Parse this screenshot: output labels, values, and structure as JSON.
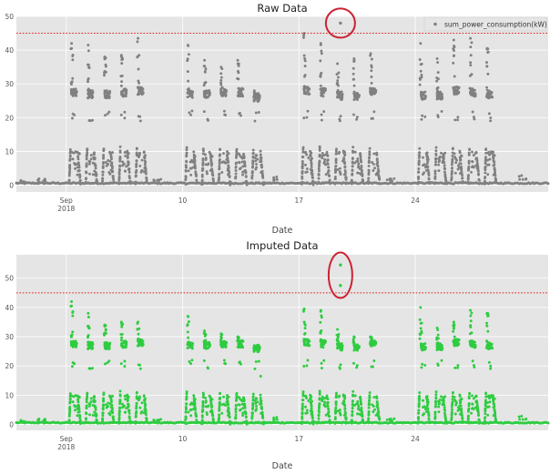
{
  "chart_data": [
    {
      "type": "scatter",
      "title": "Raw Data",
      "xlabel": "Date",
      "ylabel": "",
      "xlim": [
        "2018-08-31",
        "2018-10-02"
      ],
      "ylim": [
        -2,
        50
      ],
      "yticks": [
        0,
        10,
        20,
        30,
        40,
        50
      ],
      "xticks": [
        {
          "date": "2018-09-03",
          "label": "Sep",
          "sublabel": "2018"
        },
        {
          "date": "2018-09-10",
          "label": "10",
          "sublabel": ""
        },
        {
          "date": "2018-09-17",
          "label": "17",
          "sublabel": ""
        },
        {
          "date": "2018-09-24",
          "label": "24",
          "sublabel": ""
        }
      ],
      "grid": true,
      "legend": {
        "position": "top-right",
        "entries": [
          "sum_power_consumption(kW)"
        ]
      },
      "threshold": 45,
      "marker_color": "#808080",
      "threshold_color": "#dd2222",
      "highlight_color": "#cc2233",
      "highlight": {
        "date": "2018-09-19T12:00",
        "y": 48
      },
      "outliers": [
        {
          "date": "2018-09-19T12:00",
          "y": 48
        }
      ],
      "lows": [
        {
          "date": "2018-08-31T12:00",
          "y": 1.5
        },
        {
          "date": "2018-09-01T12:00",
          "y": 2.0
        },
        {
          "date": "2018-09-08T12:00",
          "y": 2.0
        },
        {
          "date": "2018-09-15T12:00",
          "y": 2.5
        },
        {
          "date": "2018-09-22T12:00",
          "y": 2.0
        },
        {
          "date": "2018-09-30T12:00",
          "y": 3.0
        }
      ],
      "days": [
        {
          "date": "2018-09-03",
          "peak": 42,
          "plateau": 27.5
        },
        {
          "date": "2018-09-04",
          "peak": 41.5,
          "plateau": 27
        },
        {
          "date": "2018-09-05",
          "peak": 38,
          "plateau": 27
        },
        {
          "date": "2018-09-06",
          "peak": 38.5,
          "plateau": 27.5
        },
        {
          "date": "2018-09-07",
          "peak": 43.5,
          "plateau": 28
        },
        {
          "date": "2018-09-10",
          "peak": 41.5,
          "plateau": 27
        },
        {
          "date": "2018-09-11",
          "peak": 37,
          "plateau": 27
        },
        {
          "date": "2018-09-12",
          "peak": 35,
          "plateau": 27.5
        },
        {
          "date": "2018-09-13",
          "peak": 37,
          "plateau": 27.5
        },
        {
          "date": "2018-09-14",
          "peak": 28,
          "plateau": 26
        },
        {
          "date": "2018-09-17",
          "peak": 45,
          "plateau": 28
        },
        {
          "date": "2018-09-18",
          "peak": 42,
          "plateau": 27.5
        },
        {
          "date": "2018-09-19",
          "peak": 36,
          "plateau": 26.5
        },
        {
          "date": "2018-09-20",
          "peak": 37.5,
          "plateau": 26.5
        },
        {
          "date": "2018-09-21",
          "peak": 39,
          "plateau": 27.5
        },
        {
          "date": "2018-09-24",
          "peak": 42,
          "plateau": 26.5
        },
        {
          "date": "2018-09-25",
          "peak": 37.5,
          "plateau": 26.5
        },
        {
          "date": "2018-09-26",
          "peak": 43,
          "plateau": 28
        },
        {
          "date": "2018-09-27",
          "peak": 43.5,
          "plateau": 27.5
        },
        {
          "date": "2018-09-28",
          "peak": 40.5,
          "plateau": 27
        }
      ]
    },
    {
      "type": "scatter",
      "title": "Imputed Data",
      "xlabel": "Date",
      "ylabel": "",
      "xlim": [
        "2018-08-31",
        "2018-10-02"
      ],
      "ylim": [
        -2,
        58
      ],
      "yticks": [
        0,
        10,
        20,
        30,
        40,
        50
      ],
      "xticks": [
        {
          "date": "2018-09-03",
          "label": "Sep",
          "sublabel": "2018"
        },
        {
          "date": "2018-09-10",
          "label": "10",
          "sublabel": ""
        },
        {
          "date": "2018-09-17",
          "label": "17",
          "sublabel": ""
        },
        {
          "date": "2018-09-24",
          "label": "24",
          "sublabel": ""
        }
      ],
      "grid": true,
      "threshold": 45,
      "marker_color": "#2ecc40",
      "threshold_color": "#dd2222",
      "highlight_color": "#cc2233",
      "highlight": {
        "date": "2018-09-19T12:00",
        "y": 51
      },
      "outliers": [
        {
          "date": "2018-09-19T12:00",
          "y": 54.5
        },
        {
          "date": "2018-09-19T12:00",
          "y": 47.5
        }
      ],
      "lows": [
        {
          "date": "2018-08-31T12:00",
          "y": 1.5
        },
        {
          "date": "2018-09-01T12:00",
          "y": 2.0
        },
        {
          "date": "2018-09-08T12:00",
          "y": 2.0
        },
        {
          "date": "2018-09-15T12:00",
          "y": 2.5
        },
        {
          "date": "2018-09-22T12:00",
          "y": 2.0
        },
        {
          "date": "2018-09-30T12:00",
          "y": 3.0
        }
      ],
      "days": [
        {
          "date": "2018-09-03",
          "peak": 42,
          "plateau": 27.5
        },
        {
          "date": "2018-09-04",
          "peak": 38,
          "plateau": 27
        },
        {
          "date": "2018-09-05",
          "peak": 34,
          "plateau": 27
        },
        {
          "date": "2018-09-06",
          "peak": 35,
          "plateau": 27.5
        },
        {
          "date": "2018-09-07",
          "peak": 35,
          "plateau": 28
        },
        {
          "date": "2018-09-10",
          "peak": 37,
          "plateau": 27
        },
        {
          "date": "2018-09-11",
          "peak": 32,
          "plateau": 27
        },
        {
          "date": "2018-09-12",
          "peak": 31,
          "plateau": 27.5
        },
        {
          "date": "2018-09-13",
          "peak": 30,
          "plateau": 27.5
        },
        {
          "date": "2018-09-14",
          "peak": 27,
          "plateau": 26,
          "tail": 16.5
        },
        {
          "date": "2018-09-17",
          "peak": 39.5,
          "plateau": 28
        },
        {
          "date": "2018-09-18",
          "peak": 39,
          "plateau": 27.5
        },
        {
          "date": "2018-09-19",
          "peak": 32.5,
          "plateau": 26.5
        },
        {
          "date": "2018-09-20",
          "peak": 30,
          "plateau": 26.5
        },
        {
          "date": "2018-09-21",
          "peak": 30,
          "plateau": 27.5
        },
        {
          "date": "2018-09-24",
          "peak": 40,
          "plateau": 26.5
        },
        {
          "date": "2018-09-25",
          "peak": 33,
          "plateau": 26.5
        },
        {
          "date": "2018-09-26",
          "peak": 35,
          "plateau": 28
        },
        {
          "date": "2018-09-27",
          "peak": 39,
          "plateau": 27.5
        },
        {
          "date": "2018-09-28",
          "peak": 38,
          "plateau": 27
        }
      ]
    }
  ]
}
